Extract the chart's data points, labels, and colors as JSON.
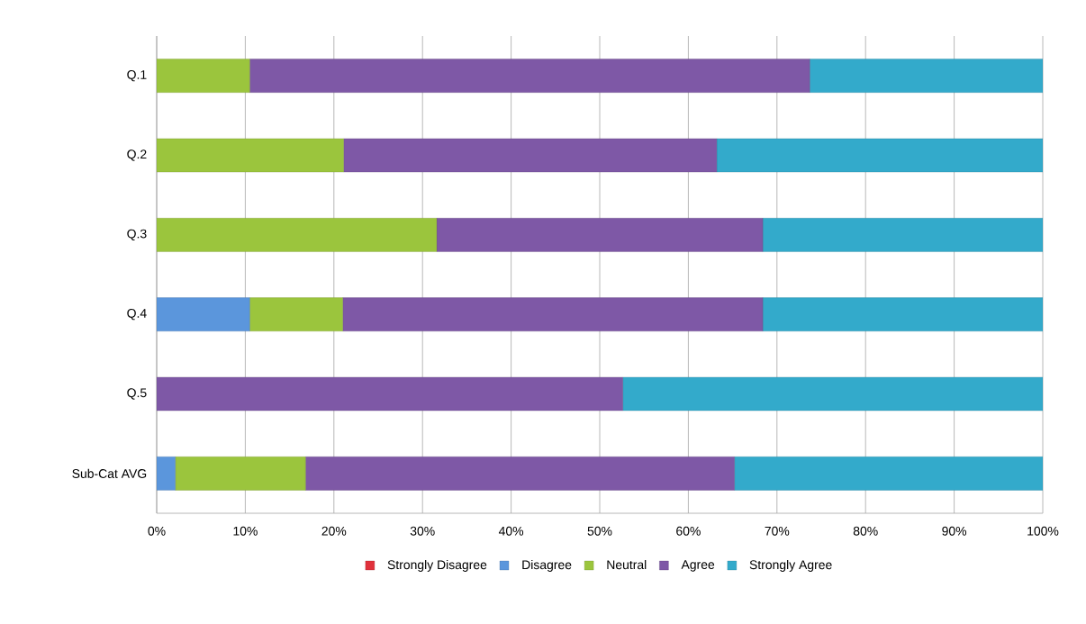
{
  "chart_data": {
    "type": "bar",
    "orientation": "horizontal",
    "stacked": true,
    "categories": [
      "Q.1",
      "Q.2",
      "Q.3",
      "Q.4",
      "Q.5",
      "Sub-Cat AVG"
    ],
    "series": [
      {
        "name": "Strongly Disagree",
        "color": "#e0313b",
        "values": [
          0,
          0,
          0,
          0,
          0,
          0
        ]
      },
      {
        "name": "Disagree",
        "color": "#5b96dc",
        "values": [
          0,
          0,
          0,
          10.5,
          0,
          2.1
        ]
      },
      {
        "name": "Neutral",
        "color": "#9bc53d",
        "values": [
          10.5,
          21.1,
          31.6,
          10.5,
          0,
          14.7
        ]
      },
      {
        "name": "Agree",
        "color": "#7e58a6",
        "values": [
          63.2,
          42.1,
          36.8,
          47.4,
          52.6,
          48.4
        ]
      },
      {
        "name": "Strongly Agree",
        "color": "#33aacb",
        "values": [
          26.3,
          36.8,
          31.6,
          31.6,
          47.4,
          34.8
        ]
      }
    ],
    "xlim": [
      0,
      100
    ],
    "xticks": [
      {
        "value": 0,
        "label": "0%"
      },
      {
        "value": 10,
        "label": "10%"
      },
      {
        "value": 20,
        "label": "20%"
      },
      {
        "value": 30,
        "label": "30%"
      },
      {
        "value": 40,
        "label": "40%"
      },
      {
        "value": 50,
        "label": "50%"
      },
      {
        "value": 60,
        "label": "60%"
      },
      {
        "value": 70,
        "label": "70%"
      },
      {
        "value": 80,
        "label": "80%"
      },
      {
        "value": 90,
        "label": "90%"
      },
      {
        "value": 100,
        "label": "100%"
      }
    ],
    "grid": "x",
    "legend": "bottom"
  }
}
